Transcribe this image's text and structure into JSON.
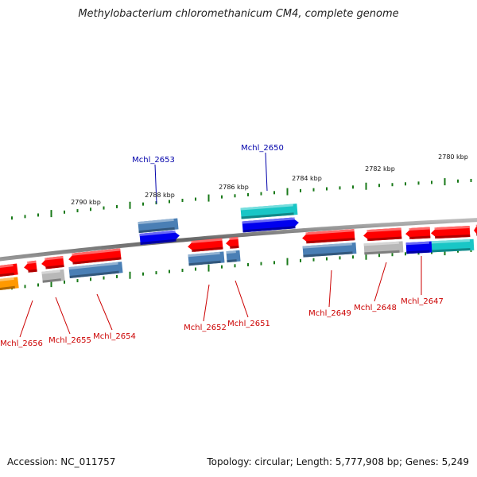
{
  "title": "Methylobacterium chloromethanicum CM4, complete genome",
  "footer": {
    "accession": "Accession: NC_011757",
    "summary": "Topology: circular; Length: 5,777,908 bp; Genes: 5,249"
  },
  "colors": {
    "backbone": "#777777",
    "tick": "#1a7a1a",
    "label_forward": "#0000aa",
    "label_reverse": "#cc0000",
    "red": "#ff0000",
    "blue": "#0000ee",
    "steelblue": "#4a7fb5",
    "cyan": "#19c6c6",
    "gray": "#b8b8b8",
    "orange": "#ff9900"
  },
  "scale_labels": [
    "2790 kbp",
    "2788 kbp",
    "2786 kbp",
    "2784 kbp",
    "2782 kbp",
    "2780 kbp"
  ],
  "gene_labels": {
    "forward": [
      "Mchl_2653",
      "Mchl_2650"
    ],
    "reverse": [
      "Mchl_2656",
      "Mchl_2655",
      "Mchl_2654",
      "Mchl_2652",
      "Mchl_2651",
      "Mchl_2649",
      "Mchl_2648",
      "Mchl_2647"
    ]
  }
}
